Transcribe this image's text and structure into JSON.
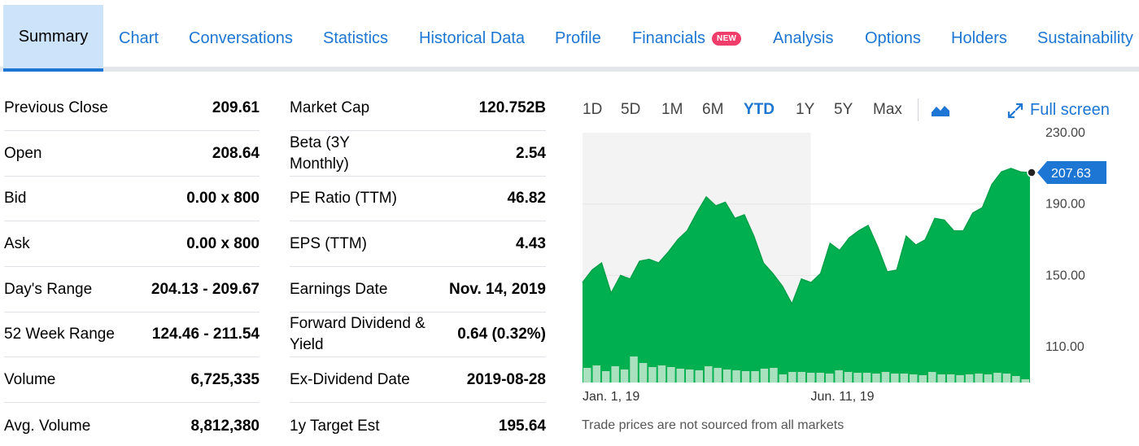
{
  "tabs": [
    {
      "label": "Summary",
      "active": true
    },
    {
      "label": "Chart"
    },
    {
      "label": "Conversations"
    },
    {
      "label": "Statistics"
    },
    {
      "label": "Historical Data"
    },
    {
      "label": "Profile"
    },
    {
      "label": "Financials",
      "badge": "NEW"
    },
    {
      "label": "Analysis"
    },
    {
      "label": "Options"
    },
    {
      "label": "Holders"
    },
    {
      "label": "Sustainability"
    }
  ],
  "left_table": [
    {
      "label": "Previous Close",
      "value": "209.61"
    },
    {
      "label": "Open",
      "value": "208.64"
    },
    {
      "label": "Bid",
      "value": "0.00 x 800"
    },
    {
      "label": "Ask",
      "value": "0.00 x 800"
    },
    {
      "label": "Day's Range",
      "value": "204.13 - 209.67"
    },
    {
      "label": "52 Week Range",
      "value": "124.46 - 211.54"
    },
    {
      "label": "Volume",
      "value": "6,725,335"
    },
    {
      "label": "Avg. Volume",
      "value": "8,812,380"
    }
  ],
  "right_table": [
    {
      "label": "Market Cap",
      "value": "120.752B"
    },
    {
      "label": "Beta (3Y Monthly)",
      "value": "2.54"
    },
    {
      "label": "PE Ratio (TTM)",
      "value": "46.82"
    },
    {
      "label": "EPS (TTM)",
      "value": "4.43"
    },
    {
      "label": "Earnings Date",
      "value": "Nov. 14, 2019"
    },
    {
      "label": "Forward Dividend & Yield",
      "value": "0.64 (0.32%)"
    },
    {
      "label": "Ex-Dividend Date",
      "value": "2019-08-28"
    },
    {
      "label": "1y Target Est",
      "value": "195.64"
    }
  ],
  "chart_controls": {
    "ranges": [
      "1D",
      "5D",
      "1M",
      "6M",
      "YTD",
      "1Y",
      "5Y",
      "Max"
    ],
    "active_range": "YTD",
    "chart_type_icon": "mountain-chart-icon",
    "fullscreen_label": "Full screen",
    "fullscreen_icon": "expand-icon"
  },
  "chart_data": {
    "type": "area",
    "ylim": [
      90,
      230
    ],
    "y_ticks": [
      "230.00",
      "190.00",
      "150.00",
      "110.00"
    ],
    "y_tick_values": [
      230,
      190,
      150,
      110
    ],
    "x_tick_labels": [
      "Jan. 1, 19",
      "Jun. 11, 19"
    ],
    "current_price": "207.63",
    "current_value": 207.63,
    "series": [
      {
        "values": [
          146,
          153,
          157,
          140,
          150,
          148,
          158,
          159,
          157,
          163,
          170,
          175,
          185,
          194,
          189,
          191,
          182,
          184,
          172,
          157,
          151,
          144,
          134,
          148,
          146,
          151,
          168,
          164,
          171,
          175,
          178,
          166,
          152,
          153,
          172,
          167,
          170,
          182,
          181,
          175,
          175,
          185,
          188,
          201,
          208,
          210,
          208,
          207.63
        ]
      }
    ],
    "volume": [
      18,
      21,
      14,
      20,
      16,
      32,
      24,
      19,
      21,
      19,
      17,
      16,
      15,
      20,
      18,
      16,
      15,
      14,
      14,
      17,
      18,
      10,
      13,
      13,
      12,
      12,
      11,
      15,
      13,
      12,
      12,
      11,
      13,
      11,
      11,
      10,
      9,
      13,
      10,
      10,
      9,
      10,
      11,
      10,
      12,
      11,
      8,
      4
    ],
    "shaded_period_end_fraction": 0.51,
    "colors": {
      "area": "#00b050",
      "line": "#00a048",
      "volume": "#a9e1bf",
      "shade": "#f3f3f3",
      "accent": "#1d76d3"
    }
  },
  "footnote": "Trade prices are not sourced from all markets"
}
